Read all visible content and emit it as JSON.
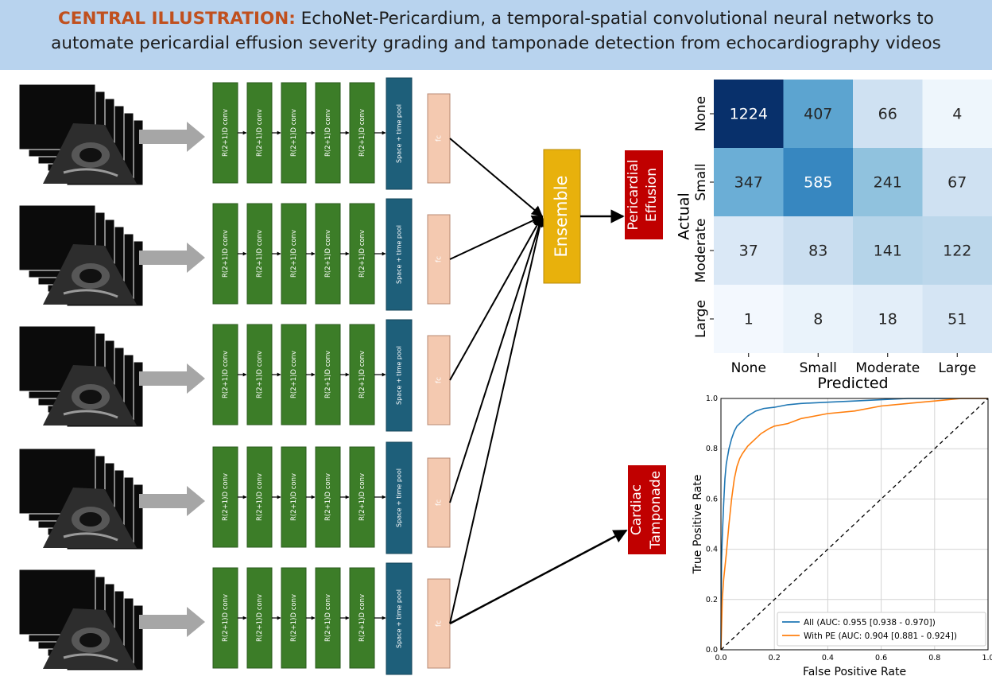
{
  "title": {
    "lead": "CENTRAL ILLUSTRATION:",
    "line1": "EchoNet-Pericardium, a temporal-spatial convolutional neural networks to",
    "line2": "automate pericardial effusion severity grading and tamponade detection from echocardiography videos"
  },
  "network": {
    "conv_label": "R(2+1)D conv",
    "pool_label": "Space + time pool",
    "fc_label": "fc",
    "ensemble_label": "Ensemble",
    "pe_output": [
      "Pericardial",
      "Effusion"
    ],
    "tamponade_output": [
      "Cardiac",
      "Tamponade"
    ],
    "conv_layers_per_row": 5,
    "video_rows": 5,
    "colors": {
      "conv": "#3c7d28",
      "pool": "#1e5f7a",
      "fc": "#f4c9b0",
      "ensemble": "#e8b10c",
      "output": "#c00000",
      "arrow": "#a6a6a6"
    }
  },
  "chart_data": [
    {
      "type": "heatmap",
      "title": "",
      "xlabel": "Predicted",
      "ylabel": "Actual",
      "x_categories": [
        "None",
        "Small",
        "Moderate",
        "Large"
      ],
      "y_categories": [
        "None",
        "Small",
        "Moderate",
        "Large"
      ],
      "values": [
        [
          1224,
          407,
          66,
          4
        ],
        [
          347,
          585,
          241,
          67
        ],
        [
          37,
          83,
          141,
          122
        ],
        [
          1,
          8,
          18,
          51
        ]
      ],
      "colormap": "Blues"
    },
    {
      "type": "line",
      "title": "",
      "xlabel": "False Positive Rate",
      "ylabel": "True Positive Rate",
      "xlim": [
        0.0,
        1.0
      ],
      "ylim": [
        0.0,
        1.0
      ],
      "ticks": [
        "0.0",
        "0.2",
        "0.4",
        "0.6",
        "0.8",
        "1.0"
      ],
      "grid": true,
      "legend_position": "lower-right",
      "series": [
        {
          "name": "All (AUC: 0.955 [0.938 - 0.970])",
          "color": "#1f77b4",
          "x": [
            0,
            0.002,
            0.005,
            0.01,
            0.015,
            0.02,
            0.03,
            0.04,
            0.05,
            0.06,
            0.08,
            0.1,
            0.13,
            0.16,
            0.2,
            0.25,
            0.3,
            0.4,
            0.5,
            0.6,
            0.7,
            0.8,
            0.9,
            1.0
          ],
          "y": [
            0,
            0.35,
            0.45,
            0.58,
            0.68,
            0.74,
            0.8,
            0.84,
            0.87,
            0.89,
            0.91,
            0.93,
            0.95,
            0.96,
            0.965,
            0.975,
            0.98,
            0.985,
            0.99,
            0.995,
            1.0,
            1.0,
            1.0,
            1.0
          ]
        },
        {
          "name": "With PE (AUC: 0.904 [0.881 - 0.924])",
          "color": "#ff7f0e",
          "x": [
            0,
            0.005,
            0.01,
            0.02,
            0.03,
            0.04,
            0.05,
            0.06,
            0.07,
            0.08,
            0.1,
            0.12,
            0.15,
            0.18,
            0.2,
            0.25,
            0.3,
            0.4,
            0.5,
            0.6,
            0.7,
            0.8,
            0.9,
            1.0
          ],
          "y": [
            0,
            0.2,
            0.28,
            0.38,
            0.5,
            0.6,
            0.68,
            0.73,
            0.76,
            0.78,
            0.81,
            0.83,
            0.86,
            0.88,
            0.89,
            0.9,
            0.92,
            0.94,
            0.95,
            0.97,
            0.98,
            0.99,
            1.0,
            1.0
          ]
        },
        {
          "name": "",
          "color": "#000000",
          "style": "dashed",
          "x": [
            0,
            1
          ],
          "y": [
            0,
            1
          ]
        }
      ]
    }
  ]
}
